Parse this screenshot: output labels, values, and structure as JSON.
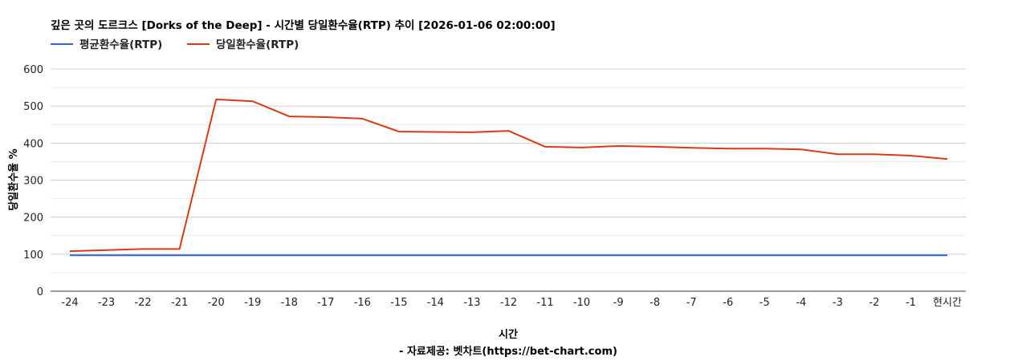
{
  "chart_data": {
    "type": "line",
    "title": "깊은 곳의 도르크스 [Dorks of the Deep] - 시간별 당일환수율(RTP) 추이 [2026-01-06 02:00:00]",
    "xlabel": "시간",
    "ylabel": "당일환수율 %",
    "footer": "- 자료제공: 벳차트(https://bet-chart.com)",
    "ylim": [
      0,
      600
    ],
    "yticks": [
      "0",
      "100",
      "200",
      "300",
      "400",
      "500",
      "600"
    ],
    "grid": true,
    "legend_position": "top-left",
    "categories": [
      "-24",
      "-23",
      "-22",
      "-21",
      "-20",
      "-19",
      "-18",
      "-17",
      "-16",
      "-15",
      "-14",
      "-13",
      "-12",
      "-11",
      "-10",
      "-9",
      "-8",
      "-7",
      "-6",
      "-5",
      "-4",
      "-3",
      "-2",
      "-1",
      "현시간"
    ],
    "series": [
      {
        "name": "평균환수율(RTP)",
        "color": "#3366cc",
        "values": [
          97,
          97,
          97,
          97,
          97,
          97,
          97,
          97,
          97,
          97,
          97,
          97,
          97,
          97,
          97,
          97,
          97,
          97,
          97,
          97,
          97,
          97,
          97,
          97,
          97
        ]
      },
      {
        "name": "당일환수율(RTP)",
        "color": "#dc3912",
        "values": [
          108,
          111,
          114,
          114,
          518,
          513,
          472,
          470,
          466,
          431,
          430,
          429,
          433,
          390,
          388,
          392,
          390,
          387,
          385,
          385,
          383,
          370,
          370,
          366,
          357
        ]
      }
    ]
  }
}
